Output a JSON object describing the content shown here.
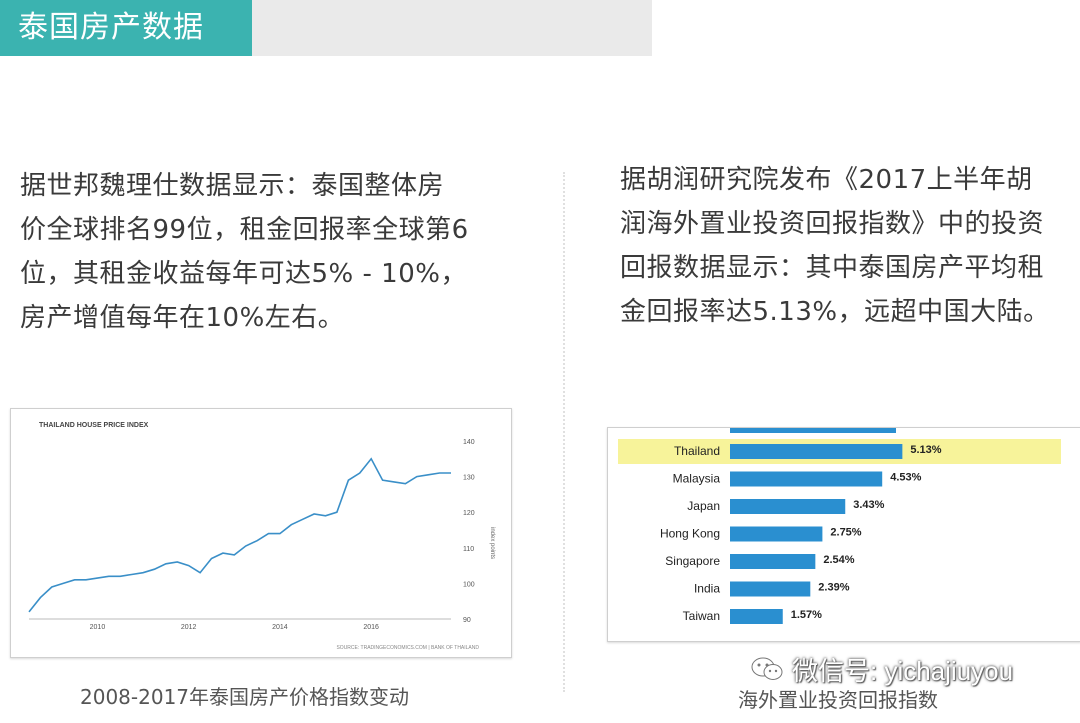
{
  "header": {
    "title": "泰国房产数据"
  },
  "left_paragraph": {
    "lines": [
      "据世邦魏理仕数据显示：泰国整体房",
      "价全球排名99位，租金回报率全球第6",
      "位，其租金收益每年可达5% - 10%，",
      "房产增值每年在10%左右。"
    ]
  },
  "right_paragraph": {
    "lines": [
      "据胡润研究院发布《2017上半年胡",
      "润海外置业投资回报指数》中的投资",
      "回报数据显示：其中泰国房产平均租",
      "金回报率达5.13%，远超中国大陆。"
    ]
  },
  "captions": {
    "left": "2008-2017年泰国房产价格指数变动",
    "right": "海外置业投资回报指数"
  },
  "watermark": {
    "text": "微信号: yichajiuyou",
    "icon": "wechat-icon"
  },
  "colors": {
    "accent": "#3bb3b0",
    "bar": "#2a8fd0",
    "highlight": "#f7f39a",
    "line": "#3a8fc8"
  },
  "chart_data": [
    {
      "type": "line",
      "title": "THAILAND HOUSE PRICE INDEX",
      "ylabel": "index points",
      "source": "SOURCE: TRADINGECONOMICS.COM | BANK OF THAILAND",
      "x_ticks": [
        "2010",
        "2012",
        "2014",
        "2016"
      ],
      "y_ticks": [
        90,
        100,
        110,
        120,
        130,
        140
      ],
      "ylim": [
        90,
        140
      ],
      "xlim": [
        2008.5,
        2017.75
      ],
      "grid": false,
      "series": [
        {
          "x": [
            2008.5,
            2008.75,
            2009.0,
            2009.25,
            2009.5,
            2009.75,
            2010.0,
            2010.25,
            2010.5,
            2010.75,
            2011.0,
            2011.25,
            2011.5,
            2011.75,
            2012.0,
            2012.25,
            2012.5,
            2012.75,
            2013.0,
            2013.25,
            2013.5,
            2013.75,
            2014.0,
            2014.25,
            2014.5,
            2014.75,
            2015.0,
            2015.25,
            2015.5,
            2015.75,
            2016.0,
            2016.25,
            2016.5,
            2016.75,
            2017.0,
            2017.25,
            2017.5,
            2017.75
          ],
          "values": [
            92,
            96,
            99,
            100,
            101,
            101,
            101.5,
            102,
            102,
            102.5,
            103,
            104,
            105.5,
            106,
            105,
            103,
            107,
            108.5,
            108,
            110.5,
            112,
            114,
            114,
            116.5,
            118,
            119.5,
            119,
            120,
            129,
            131,
            135,
            129,
            128.5,
            128,
            130,
            130.5,
            131,
            131
          ]
        }
      ]
    },
    {
      "type": "bar",
      "orientation": "horizontal",
      "categories": [
        "Thailand",
        "Malaysia",
        "Japan",
        "Hong Kong",
        "Singapore",
        "India",
        "Taiwan"
      ],
      "values": [
        5.13,
        4.53,
        3.43,
        2.75,
        2.54,
        2.39,
        1.57
      ],
      "value_labels": [
        "5.13%",
        "4.53%",
        "3.43%",
        "2.75%",
        "2.54%",
        "2.39%",
        "1.57%"
      ],
      "highlight": "Thailand",
      "xlim": [
        0,
        7.5
      ]
    }
  ]
}
